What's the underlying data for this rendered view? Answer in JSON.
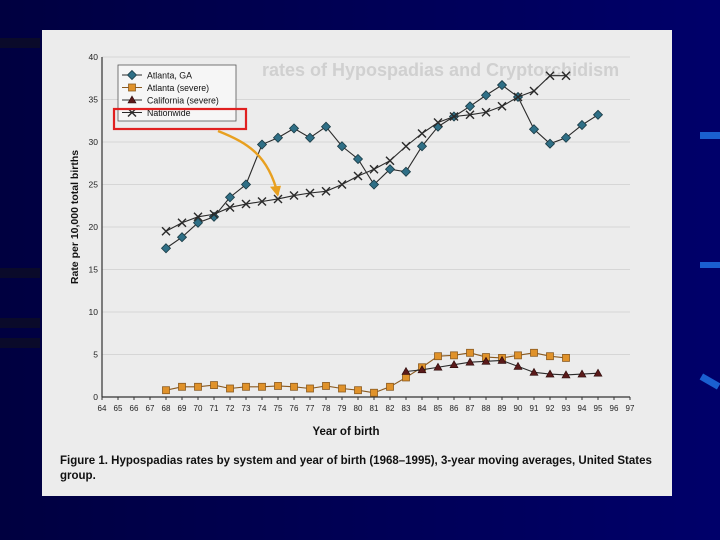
{
  "figure": {
    "caption_label": "Figure 1.",
    "caption_text": "Hypospadias rates by system and year of birth (1968–1995), 3-year moving averages, United States group.",
    "background_text": "rates of Hypospadias and Cryptorchidism"
  },
  "colors": {
    "slide_background": "#00005c",
    "panel": "#ececec",
    "atlanta": "#2f6f86",
    "atlanta_severe": "#e0922a",
    "california_severe": "#5a1a1a",
    "nationwide": "#2a2a2a",
    "highlight_box": "#e02020",
    "arrow": "#e8a020",
    "accent_blue": "#1a5fd0"
  },
  "chart_data": {
    "type": "line",
    "title": "",
    "xlabel": "Year of birth",
    "ylabel": "Rate per 10,000 total births",
    "xlim": [
      64,
      97
    ],
    "ylim": [
      0,
      40
    ],
    "x_ticks": [
      "64",
      "65",
      "66",
      "67",
      "68",
      "69",
      "70",
      "71",
      "72",
      "73",
      "74",
      "75",
      "76",
      "77",
      "78",
      "79",
      "80",
      "81",
      "82",
      "83",
      "84",
      "85",
      "86",
      "87",
      "88",
      "89",
      "90",
      "91",
      "92",
      "93",
      "94",
      "95",
      "96",
      "97"
    ],
    "y_ticks": [
      0,
      5,
      10,
      15,
      20,
      25,
      30,
      35,
      40
    ],
    "grid": true,
    "legend_position": "top-left",
    "series": [
      {
        "name": "Atlanta, GA",
        "marker": "diamond",
        "points": [
          [
            68,
            17.5
          ],
          [
            69,
            18.8
          ],
          [
            70,
            20.5
          ],
          [
            71,
            21.2
          ],
          [
            72,
            23.5
          ],
          [
            73,
            25
          ],
          [
            74,
            29.7
          ],
          [
            75,
            30.5
          ],
          [
            76,
            31.6
          ],
          [
            77,
            30.5
          ],
          [
            78,
            31.8
          ],
          [
            79,
            29.5
          ],
          [
            80,
            28
          ],
          [
            81,
            25
          ],
          [
            82,
            26.8
          ],
          [
            83,
            26.5
          ],
          [
            84,
            29.5
          ],
          [
            85,
            31.8
          ],
          [
            86,
            33
          ],
          [
            87,
            34.2
          ],
          [
            88,
            35.5
          ],
          [
            89,
            36.7
          ],
          [
            90,
            35.3
          ],
          [
            91,
            31.5
          ],
          [
            92,
            29.8
          ],
          [
            93,
            30.5
          ],
          [
            94,
            32
          ],
          [
            95,
            33.2
          ]
        ]
      },
      {
        "name": "Atlanta (severe)",
        "marker": "square",
        "points": [
          [
            68,
            0.8
          ],
          [
            69,
            1.2
          ],
          [
            70,
            1.2
          ],
          [
            71,
            1.4
          ],
          [
            72,
            1.0
          ],
          [
            73,
            1.2
          ],
          [
            74,
            1.2
          ],
          [
            75,
            1.3
          ],
          [
            76,
            1.2
          ],
          [
            77,
            1.0
          ],
          [
            78,
            1.3
          ],
          [
            79,
            1.0
          ],
          [
            80,
            0.8
          ],
          [
            81,
            0.5
          ],
          [
            82,
            1.2
          ],
          [
            83,
            2.3
          ],
          [
            84,
            3.5
          ],
          [
            85,
            4.8
          ],
          [
            86,
            4.9
          ],
          [
            87,
            5.2
          ],
          [
            88,
            4.7
          ],
          [
            89,
            4.6
          ],
          [
            90,
            4.9
          ],
          [
            91,
            5.2
          ],
          [
            92,
            4.8
          ],
          [
            93,
            4.6
          ]
        ]
      },
      {
        "name": "California (severe)",
        "marker": "triangle",
        "points": [
          [
            83,
            3.0
          ],
          [
            84,
            3.2
          ],
          [
            85,
            3.5
          ],
          [
            86,
            3.8
          ],
          [
            87,
            4.1
          ],
          [
            88,
            4.2
          ],
          [
            89,
            4.3
          ],
          [
            90,
            3.6
          ],
          [
            91,
            2.9
          ],
          [
            92,
            2.7
          ],
          [
            93,
            2.6
          ],
          [
            94,
            2.7
          ],
          [
            95,
            2.8
          ]
        ]
      },
      {
        "name": "Nationwide",
        "marker": "x",
        "points": [
          [
            68,
            19.5
          ],
          [
            69,
            20.5
          ],
          [
            70,
            21.2
          ],
          [
            71,
            21.5
          ],
          [
            72,
            22.3
          ],
          [
            73,
            22.7
          ],
          [
            74,
            23.0
          ],
          [
            75,
            23.3
          ],
          [
            76,
            23.7
          ],
          [
            77,
            24.0
          ],
          [
            78,
            24.2
          ],
          [
            79,
            25.0
          ],
          [
            80,
            26.0
          ],
          [
            81,
            26.8
          ],
          [
            82,
            27.8
          ],
          [
            83,
            29.5
          ],
          [
            84,
            31.0
          ],
          [
            85,
            32.3
          ],
          [
            86,
            33.0
          ],
          [
            87,
            33.2
          ],
          [
            88,
            33.5
          ],
          [
            89,
            34.2
          ],
          [
            90,
            35.3
          ],
          [
            91,
            36.0
          ],
          [
            92,
            37.8
          ],
          [
            93,
            37.8
          ]
        ]
      }
    ]
  }
}
